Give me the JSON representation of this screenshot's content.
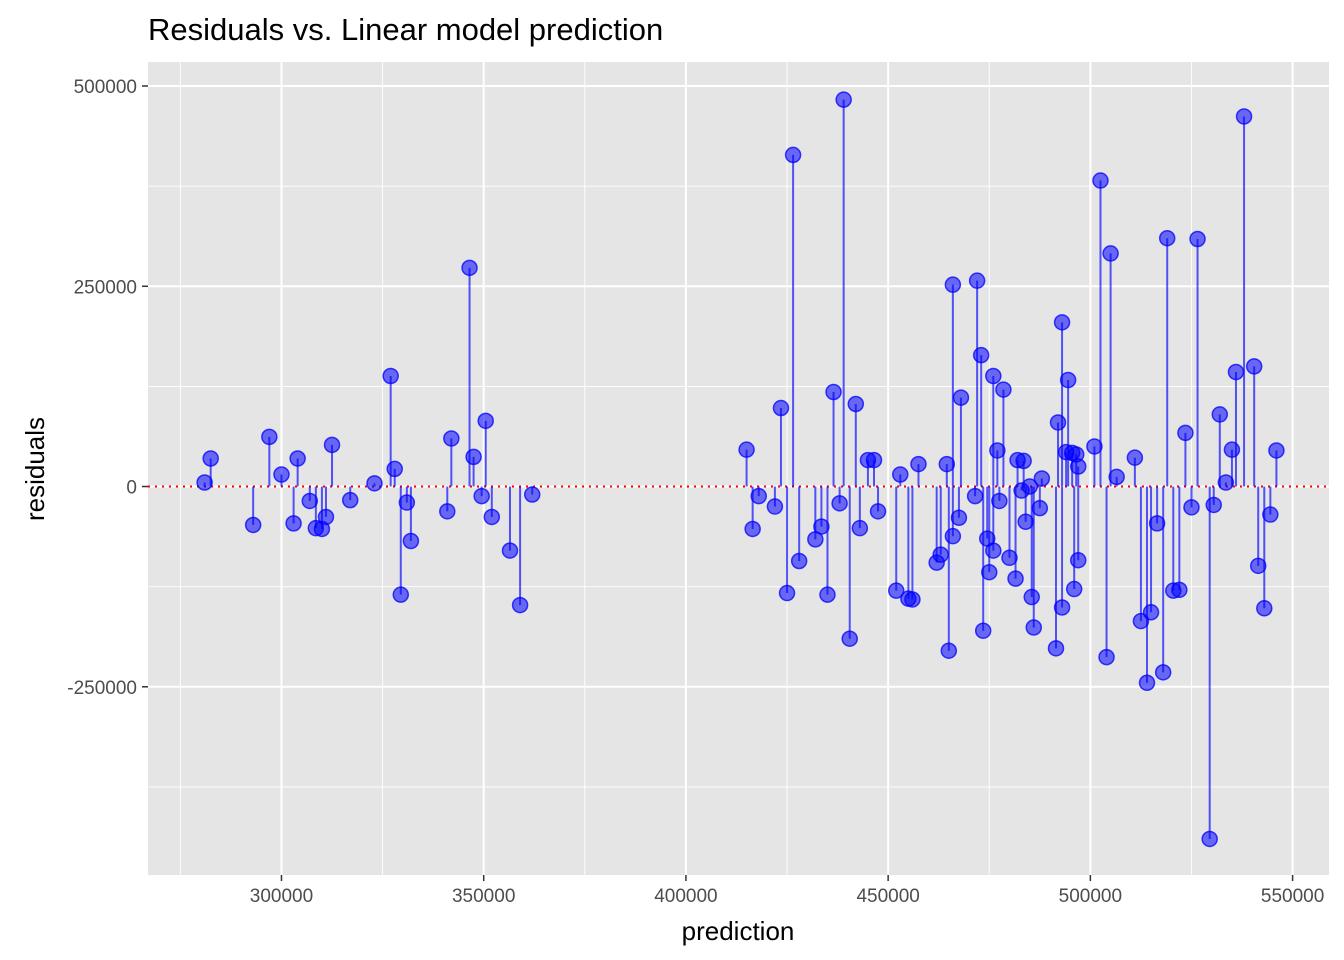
{
  "chart_data": {
    "type": "scatter",
    "title": "Residuals vs. Linear model prediction",
    "xlabel": "prediction",
    "ylabel": "residuals",
    "xlim": [
      267000,
      559000
    ],
    "ylim": [
      -485000,
      530000
    ],
    "x_ticks": [
      300000,
      350000,
      400000,
      450000,
      500000,
      550000
    ],
    "x_tick_labels": [
      "300000",
      "350000",
      "400000",
      "450000",
      "500000",
      "550000"
    ],
    "y_ticks": [
      -250000,
      0,
      250000,
      500000
    ],
    "y_tick_labels": [
      "-250000",
      "0",
      "250000",
      "500000"
    ],
    "grid": true,
    "reference_line": {
      "y": 0,
      "style": "dotted",
      "color": "#ff0000"
    },
    "colors": {
      "points": "#0000ff",
      "panel": "#e5e5e5",
      "grid": "#ffffff",
      "zero_line": "#ff0000"
    },
    "series": [
      {
        "points": [
          [
            281000,
            5000
          ],
          [
            282500,
            35000
          ],
          [
            293000,
            -48000
          ],
          [
            297000,
            62000
          ],
          [
            300000,
            15000
          ],
          [
            303000,
            -46000
          ],
          [
            304000,
            35000
          ],
          [
            307000,
            -18000
          ],
          [
            308500,
            -52000
          ],
          [
            310000,
            -53000
          ],
          [
            311000,
            -38000
          ],
          [
            312500,
            52000
          ],
          [
            317000,
            -17000
          ],
          [
            323000,
            4000
          ],
          [
            327000,
            138000
          ],
          [
            328000,
            22000
          ],
          [
            329500,
            -135000
          ],
          [
            331000,
            -20000
          ],
          [
            332000,
            -68000
          ],
          [
            341000,
            -31000
          ],
          [
            342000,
            60000
          ],
          [
            346500,
            273000
          ],
          [
            347500,
            37000
          ],
          [
            349500,
            -12000
          ],
          [
            350500,
            82000
          ],
          [
            352000,
            -38000
          ],
          [
            356500,
            -80000
          ],
          [
            359000,
            -148000
          ],
          [
            362000,
            -10000
          ],
          [
            415000,
            46000
          ],
          [
            416500,
            -53000
          ],
          [
            418000,
            -12000
          ],
          [
            422000,
            -25000
          ],
          [
            423500,
            98000
          ],
          [
            425000,
            -133000
          ],
          [
            426500,
            414000
          ],
          [
            428000,
            -93000
          ],
          [
            432000,
            -66000
          ],
          [
            433500,
            -50000
          ],
          [
            435000,
            -135000
          ],
          [
            436500,
            118000
          ],
          [
            438000,
            -21000
          ],
          [
            439000,
            483000
          ],
          [
            440500,
            -190000
          ],
          [
            442000,
            103000
          ],
          [
            443000,
            -52000
          ],
          [
            445000,
            33000
          ],
          [
            446500,
            33000
          ],
          [
            447500,
            -31000
          ],
          [
            452000,
            -130000
          ],
          [
            453000,
            15000
          ],
          [
            455000,
            -140000
          ],
          [
            456000,
            -141000
          ],
          [
            457500,
            28000
          ],
          [
            462000,
            -95000
          ],
          [
            463000,
            -85000
          ],
          [
            464500,
            28000
          ],
          [
            465000,
            -205000
          ],
          [
            466000,
            -62000
          ],
          [
            466000,
            252000
          ],
          [
            467500,
            -39000
          ],
          [
            468000,
            111000
          ],
          [
            471500,
            -12000
          ],
          [
            472000,
            257000
          ],
          [
            473000,
            164000
          ],
          [
            473500,
            -180000
          ],
          [
            474500,
            -65000
          ],
          [
            475000,
            -107000
          ],
          [
            476000,
            138000
          ],
          [
            476000,
            -80000
          ],
          [
            477000,
            45000
          ],
          [
            477500,
            -18000
          ],
          [
            478500,
            121000
          ],
          [
            480000,
            -89000
          ],
          [
            481500,
            -115000
          ],
          [
            482000,
            33000
          ],
          [
            483000,
            -5000
          ],
          [
            483500,
            32000
          ],
          [
            484000,
            -44000
          ],
          [
            485000,
            0
          ],
          [
            485500,
            -138000
          ],
          [
            486000,
            -176000
          ],
          [
            487500,
            -27000
          ],
          [
            488000,
            10000
          ],
          [
            491500,
            -202000
          ],
          [
            492000,
            80000
          ],
          [
            493000,
            205000
          ],
          [
            493000,
            -151000
          ],
          [
            494000,
            43000
          ],
          [
            494500,
            133000
          ],
          [
            495500,
            42000
          ],
          [
            496000,
            -128000
          ],
          [
            496500,
            40000
          ],
          [
            497000,
            25000
          ],
          [
            497000,
            -92000
          ],
          [
            501000,
            50000
          ],
          [
            502500,
            382000
          ],
          [
            504000,
            -213000
          ],
          [
            505000,
            291000
          ],
          [
            506500,
            12000
          ],
          [
            511000,
            36000
          ],
          [
            512500,
            -168000
          ],
          [
            514000,
            -245000
          ],
          [
            515000,
            -157000
          ],
          [
            516500,
            -46000
          ],
          [
            518000,
            -232000
          ],
          [
            519000,
            310000
          ],
          [
            520500,
            -130000
          ],
          [
            522000,
            -129000
          ],
          [
            523500,
            67000
          ],
          [
            525000,
            -26000
          ],
          [
            526500,
            309000
          ],
          [
            529500,
            -440000
          ],
          [
            530500,
            -23000
          ],
          [
            532000,
            90000
          ],
          [
            533500,
            5000
          ],
          [
            535000,
            46000
          ],
          [
            536000,
            143000
          ],
          [
            538000,
            462000
          ],
          [
            540500,
            150000
          ],
          [
            541500,
            -99000
          ],
          [
            543000,
            -152000
          ],
          [
            544500,
            -35000
          ],
          [
            546000,
            45000
          ]
        ]
      }
    ]
  }
}
